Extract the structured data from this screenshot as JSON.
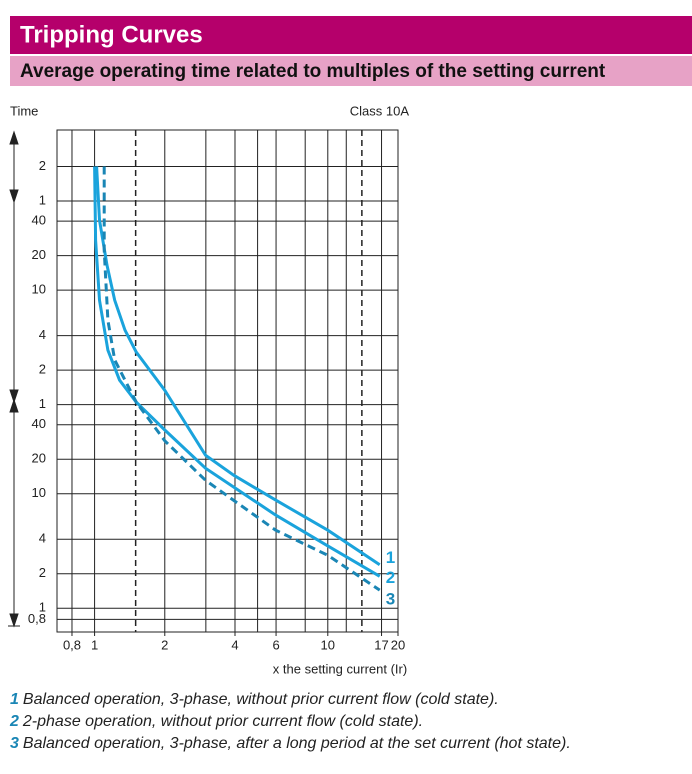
{
  "chart_data": {
    "type": "line",
    "title": "Tripping Curves",
    "subtitle": "Average operating time related to multiples of the setting current",
    "y_label": "Time",
    "annotation": "Class 10A",
    "x_label": "x the setting current (Ir)",
    "xscale": "log",
    "yscale": "log",
    "xlim": [
      0.69,
      20
    ],
    "ylim": [
      0.62,
      15000
    ],
    "xticks": [
      {
        "value": 0.8,
        "label": "0,8"
      },
      1,
      2,
      4,
      6,
      10,
      17,
      20
    ],
    "yticks": [
      {
        "value": 7200,
        "label": "2"
      },
      {
        "value": 3600,
        "label": "1"
      },
      {
        "value": 2400,
        "label": "40"
      },
      {
        "value": 1200,
        "label": "20"
      },
      {
        "value": 600,
        "label": "10"
      },
      {
        "value": 240,
        "label": "4"
      },
      {
        "value": 120,
        "label": "2"
      },
      {
        "value": 60,
        "label": "1"
      },
      40,
      20,
      10,
      4,
      2,
      1,
      {
        "value": 0.8,
        "label": "0,8"
      }
    ],
    "xgrid": [
      0.8,
      1,
      2,
      3,
      4,
      5,
      6,
      8,
      10,
      12,
      17,
      20
    ],
    "xgrid_dashed": [
      1.5,
      14
    ],
    "grid": true,
    "series": [
      {
        "name": "1",
        "description": "Balanced operation, 3-phase, without prior current flow (cold state).",
        "color": "#1aa3dc",
        "dash": false,
        "x": [
          1.02,
          1.05,
          1.13,
          1.22,
          1.35,
          1.51,
          2.0,
          2.99,
          3.95,
          5.98,
          10,
          16.7
        ],
        "values": [
          7200,
          2450,
          990,
          490,
          268,
          172,
          80,
          21.7,
          14.5,
          8.8,
          4.8,
          2.4
        ]
      },
      {
        "name": "2",
        "description": "2-phase operation, without prior current flow (cold state).",
        "color": "#1aa3dc",
        "dash": false,
        "x": [
          1.0,
          1.01,
          1.05,
          1.14,
          1.28,
          1.51,
          2.0,
          2.99,
          5.98,
          10,
          16.7
        ],
        "values": [
          7200,
          1640,
          490,
          179,
          98,
          63,
          36,
          16.7,
          6.5,
          3.5,
          1.9
        ]
      },
      {
        "name": "3",
        "description": "Balanced operation, 3-phase, after a long period at the set current (hot state).",
        "color": "#1a86b5",
        "dash": true,
        "x": [
          1.1,
          1.1,
          1.14,
          1.22,
          1.51,
          2.0,
          2.99,
          5.98,
          10,
          16.7
        ],
        "values": [
          7200,
          1340,
          327,
          147,
          63,
          29,
          13.1,
          4.8,
          2.9,
          1.44
        ]
      }
    ]
  }
}
